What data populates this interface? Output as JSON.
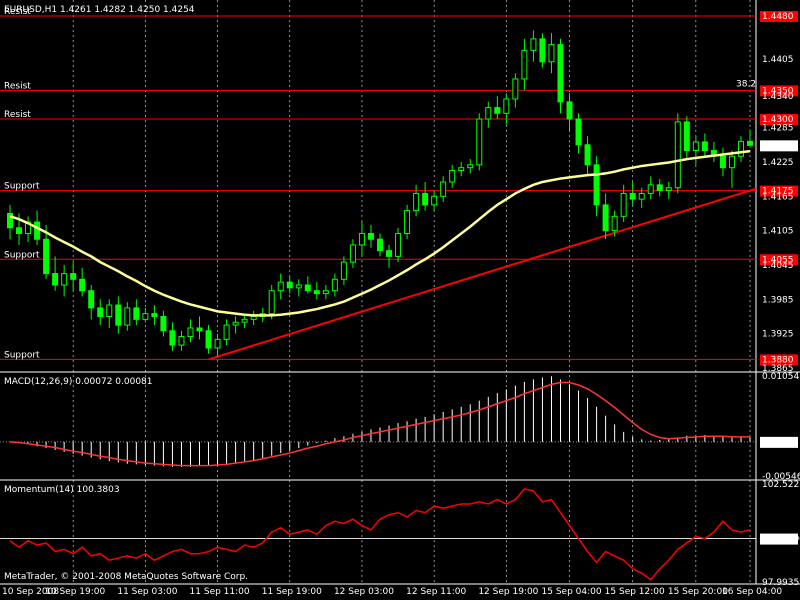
{
  "header": {
    "title": "EURUSD,H1  1.4261 1.4282 1.4250 1.4254"
  },
  "copyright": "MetaTrader, © 2001-2008 MetaQuotes Software Corp.",
  "colors": {
    "background": "#000000",
    "candle_up": "#00ff00",
    "candle_down": "#00ff00",
    "ma": "#ffff99",
    "trendline": "#ff0000",
    "resist_support_line": "#ff0000",
    "macd_signal": "#ff3333",
    "macd_hist": "#ffffff",
    "momentum": "#ff0000",
    "grid": "#ffffff",
    "separator": "#ffffff"
  },
  "chart_data": [
    {
      "type": "candlestick",
      "title": "EURUSD,H1",
      "ohlc": "1.4261 1.4282 1.4250 1.4254",
      "ylim": [
        1.3865,
        1.448
      ],
      "y_ticks": [
        "1.4405",
        "1.4340",
        "1.4285",
        "1.4225",
        "1.4165",
        "1.4105",
        "1.4045",
        "1.3985",
        "1.3925",
        "1.3865"
      ],
      "price_label_current": "1.4254",
      "levels": [
        {
          "label": "Resist",
          "value": 1.448,
          "tag": "1.4480"
        },
        {
          "label": "Resist",
          "value": 1.435,
          "tag": "1.4350",
          "note": "38.2"
        },
        {
          "label": "Resist",
          "value": 1.43,
          "tag": "1.4300"
        },
        {
          "label": "Support",
          "value": 1.4175,
          "tag": "1.4175"
        },
        {
          "label": "Support",
          "value": 1.4055,
          "tag": "1.4055"
        },
        {
          "label": "Support",
          "value": 1.388,
          "tag": "1.3880"
        }
      ],
      "x_labels": [
        "10 Sep 2008",
        "10 Sep 19:00",
        "11 Sep 03:00",
        "11 Sep 11:00",
        "11 Sep 19:00",
        "12 Sep 03:00",
        "12 Sep 11:00",
        "12 Sep 19:00",
        "15 Sep 04:00",
        "15 Sep 12:00",
        "15 Sep 20:00",
        "16 Sep 04:00"
      ],
      "candles": [
        {
          "o": 1.4135,
          "h": 1.415,
          "l": 1.409,
          "c": 1.411
        },
        {
          "o": 1.411,
          "h": 1.4135,
          "l": 1.408,
          "c": 1.41
        },
        {
          "o": 1.41,
          "h": 1.413,
          "l": 1.4085,
          "c": 1.412
        },
        {
          "o": 1.412,
          "h": 1.414,
          "l": 1.408,
          "c": 1.409
        },
        {
          "o": 1.409,
          "h": 1.4115,
          "l": 1.402,
          "c": 1.403
        },
        {
          "o": 1.403,
          "h": 1.406,
          "l": 1.4,
          "c": 1.401
        },
        {
          "o": 1.401,
          "h": 1.4045,
          "l": 1.399,
          "c": 1.403
        },
        {
          "o": 1.403,
          "h": 1.405,
          "l": 1.4,
          "c": 1.402
        },
        {
          "o": 1.402,
          "h": 1.404,
          "l": 1.399,
          "c": 1.4
        },
        {
          "o": 1.4,
          "h": 1.401,
          "l": 1.395,
          "c": 1.397
        },
        {
          "o": 1.397,
          "h": 1.3985,
          "l": 1.394,
          "c": 1.3955
        },
        {
          "o": 1.3955,
          "h": 1.3985,
          "l": 1.3935,
          "c": 1.3975
        },
        {
          "o": 1.3975,
          "h": 1.399,
          "l": 1.3925,
          "c": 1.394
        },
        {
          "o": 1.394,
          "h": 1.398,
          "l": 1.393,
          "c": 1.397
        },
        {
          "o": 1.397,
          "h": 1.3985,
          "l": 1.394,
          "c": 1.395
        },
        {
          "o": 1.395,
          "h": 1.397,
          "l": 1.3945,
          "c": 1.396
        },
        {
          "o": 1.396,
          "h": 1.3975,
          "l": 1.394,
          "c": 1.3955
        },
        {
          "o": 1.3955,
          "h": 1.3965,
          "l": 1.392,
          "c": 1.393
        },
        {
          "o": 1.393,
          "h": 1.3945,
          "l": 1.3895,
          "c": 1.3905
        },
        {
          "o": 1.3905,
          "h": 1.393,
          "l": 1.3895,
          "c": 1.392
        },
        {
          "o": 1.392,
          "h": 1.395,
          "l": 1.391,
          "c": 1.3935
        },
        {
          "o": 1.3935,
          "h": 1.3955,
          "l": 1.3915,
          "c": 1.393
        },
        {
          "o": 1.393,
          "h": 1.394,
          "l": 1.389,
          "c": 1.39
        },
        {
          "o": 1.39,
          "h": 1.3925,
          "l": 1.3885,
          "c": 1.3915
        },
        {
          "o": 1.3915,
          "h": 1.395,
          "l": 1.3905,
          "c": 1.394
        },
        {
          "o": 1.394,
          "h": 1.3955,
          "l": 1.3925,
          "c": 1.3945
        },
        {
          "o": 1.3945,
          "h": 1.396,
          "l": 1.3935,
          "c": 1.395
        },
        {
          "o": 1.395,
          "h": 1.3965,
          "l": 1.394,
          "c": 1.3955
        },
        {
          "o": 1.3955,
          "h": 1.397,
          "l": 1.3945,
          "c": 1.396
        },
        {
          "o": 1.396,
          "h": 1.401,
          "l": 1.395,
          "c": 1.4
        },
        {
          "o": 1.4,
          "h": 1.403,
          "l": 1.3985,
          "c": 1.4015
        },
        {
          "o": 1.4015,
          "h": 1.4025,
          "l": 1.3995,
          "c": 1.4005
        },
        {
          "o": 1.4005,
          "h": 1.402,
          "l": 1.399,
          "c": 1.401
        },
        {
          "o": 1.401,
          "h": 1.4025,
          "l": 1.3995,
          "c": 1.4
        },
        {
          "o": 1.4,
          "h": 1.4015,
          "l": 1.3985,
          "c": 1.3995
        },
        {
          "o": 1.3995,
          "h": 1.401,
          "l": 1.3985,
          "c": 1.4
        },
        {
          "o": 1.4,
          "h": 1.403,
          "l": 1.399,
          "c": 1.402
        },
        {
          "o": 1.402,
          "h": 1.406,
          "l": 1.401,
          "c": 1.405
        },
        {
          "o": 1.405,
          "h": 1.409,
          "l": 1.404,
          "c": 1.408
        },
        {
          "o": 1.408,
          "h": 1.412,
          "l": 1.406,
          "c": 1.41
        },
        {
          "o": 1.41,
          "h": 1.4115,
          "l": 1.4075,
          "c": 1.409
        },
        {
          "o": 1.409,
          "h": 1.41,
          "l": 1.406,
          "c": 1.407
        },
        {
          "o": 1.407,
          "h": 1.408,
          "l": 1.404,
          "c": 1.406
        },
        {
          "o": 1.406,
          "h": 1.411,
          "l": 1.405,
          "c": 1.41
        },
        {
          "o": 1.41,
          "h": 1.415,
          "l": 1.409,
          "c": 1.414
        },
        {
          "o": 1.414,
          "h": 1.4185,
          "l": 1.413,
          "c": 1.417
        },
        {
          "o": 1.417,
          "h": 1.419,
          "l": 1.414,
          "c": 1.415
        },
        {
          "o": 1.415,
          "h": 1.4175,
          "l": 1.414,
          "c": 1.4165
        },
        {
          "o": 1.4165,
          "h": 1.42,
          "l": 1.4155,
          "c": 1.419
        },
        {
          "o": 1.419,
          "h": 1.422,
          "l": 1.418,
          "c": 1.421
        },
        {
          "o": 1.421,
          "h": 1.4225,
          "l": 1.42,
          "c": 1.4215
        },
        {
          "o": 1.4215,
          "h": 1.423,
          "l": 1.4205,
          "c": 1.422
        },
        {
          "o": 1.422,
          "h": 1.431,
          "l": 1.421,
          "c": 1.43
        },
        {
          "o": 1.43,
          "h": 1.433,
          "l": 1.4285,
          "c": 1.432
        },
        {
          "o": 1.432,
          "h": 1.434,
          "l": 1.43,
          "c": 1.431
        },
        {
          "o": 1.431,
          "h": 1.4345,
          "l": 1.429,
          "c": 1.4335
        },
        {
          "o": 1.4335,
          "h": 1.438,
          "l": 1.432,
          "c": 1.437
        },
        {
          "o": 1.437,
          "h": 1.444,
          "l": 1.435,
          "c": 1.442
        },
        {
          "o": 1.442,
          "h": 1.4455,
          "l": 1.44,
          "c": 1.444
        },
        {
          "o": 1.444,
          "h": 1.445,
          "l": 1.439,
          "c": 1.44
        },
        {
          "o": 1.44,
          "h": 1.445,
          "l": 1.438,
          "c": 1.443
        },
        {
          "o": 1.443,
          "h": 1.444,
          "l": 1.431,
          "c": 1.433
        },
        {
          "o": 1.433,
          "h": 1.4345,
          "l": 1.428,
          "c": 1.43
        },
        {
          "o": 1.43,
          "h": 1.431,
          "l": 1.424,
          "c": 1.4255
        },
        {
          "o": 1.4255,
          "h": 1.427,
          "l": 1.42,
          "c": 1.422
        },
        {
          "o": 1.422,
          "h": 1.4235,
          "l": 1.413,
          "c": 1.415
        },
        {
          "o": 1.415,
          "h": 1.417,
          "l": 1.409,
          "c": 1.4105
        },
        {
          "o": 1.4105,
          "h": 1.414,
          "l": 1.4095,
          "c": 1.413
        },
        {
          "o": 1.413,
          "h": 1.4185,
          "l": 1.412,
          "c": 1.417
        },
        {
          "o": 1.417,
          "h": 1.419,
          "l": 1.415,
          "c": 1.416
        },
        {
          "o": 1.416,
          "h": 1.418,
          "l": 1.4145,
          "c": 1.417
        },
        {
          "o": 1.417,
          "h": 1.42,
          "l": 1.416,
          "c": 1.4185
        },
        {
          "o": 1.4185,
          "h": 1.4195,
          "l": 1.4165,
          "c": 1.4175
        },
        {
          "o": 1.4175,
          "h": 1.419,
          "l": 1.416,
          "c": 1.418
        },
        {
          "o": 1.418,
          "h": 1.431,
          "l": 1.417,
          "c": 1.4295
        },
        {
          "o": 1.4295,
          "h": 1.4305,
          "l": 1.423,
          "c": 1.4245
        },
        {
          "o": 1.4245,
          "h": 1.427,
          "l": 1.422,
          "c": 1.426
        },
        {
          "o": 1.426,
          "h": 1.4275,
          "l": 1.4235,
          "c": 1.4245
        },
        {
          "o": 1.4245,
          "h": 1.426,
          "l": 1.4225,
          "c": 1.4235
        },
        {
          "o": 1.4235,
          "h": 1.425,
          "l": 1.42,
          "c": 1.4215
        },
        {
          "o": 1.4215,
          "h": 1.4245,
          "l": 1.418,
          "c": 1.4235
        },
        {
          "o": 1.4235,
          "h": 1.427,
          "l": 1.4225,
          "c": 1.4261
        },
        {
          "o": 1.4261,
          "h": 1.4282,
          "l": 1.425,
          "c": 1.4254
        }
      ],
      "ma_values": [
        1.413,
        1.4125,
        1.4118,
        1.411,
        1.4102,
        1.4093,
        1.4085,
        1.4077,
        1.4068,
        1.406,
        1.405,
        1.4042,
        1.4034,
        1.4025,
        1.4017,
        1.4008,
        1.4,
        1.3993,
        1.3987,
        1.3981,
        1.3976,
        1.3972,
        1.3968,
        1.3964,
        1.3962,
        1.396,
        1.3958,
        1.3957,
        1.3957,
        1.3957,
        1.3958,
        1.396,
        1.3962,
        1.3965,
        1.3968,
        1.3972,
        1.3976,
        1.3981,
        1.3988,
        1.3995,
        1.4002,
        1.401,
        1.4018,
        1.4027,
        1.4036,
        1.4046,
        1.4055,
        1.4065,
        1.4076,
        1.4088,
        1.41,
        1.4112,
        1.4125,
        1.4138,
        1.415,
        1.416,
        1.417,
        1.4178,
        1.4185,
        1.419,
        1.4193,
        1.4196,
        1.4198,
        1.42,
        1.4202,
        1.4203,
        1.4205,
        1.4208,
        1.4212,
        1.4215,
        1.4218,
        1.422,
        1.4222,
        1.4224,
        1.4227,
        1.423,
        1.4232,
        1.4234,
        1.4236,
        1.4238,
        1.424,
        1.4242,
        1.4244
      ],
      "trendline": [
        [
          22,
          1.388
        ],
        [
          82,
          1.4175
        ]
      ]
    },
    {
      "type": "histogram+line",
      "title": "MACD(12,26,9) 0.00072 0.00081",
      "ylim": [
        -0.00546,
        0.01054
      ],
      "y_ticks": [
        "0.01054",
        "0.0000",
        "-0.00546"
      ],
      "current_tag": "0.0000",
      "histogram": [
        0.0,
        -0.0002,
        -0.0004,
        -0.0007,
        -0.001,
        -0.0013,
        -0.0016,
        -0.0019,
        -0.0022,
        -0.0025,
        -0.0028,
        -0.0031,
        -0.0033,
        -0.0035,
        -0.0036,
        -0.0037,
        -0.0038,
        -0.0039,
        -0.004,
        -0.004,
        -0.004,
        -0.0039,
        -0.0038,
        -0.0037,
        -0.0035,
        -0.0033,
        -0.0031,
        -0.0029,
        -0.0026,
        -0.0022,
        -0.0018,
        -0.0014,
        -0.001,
        -0.0006,
        -0.0002,
        0.0002,
        0.0006,
        0.0009,
        0.0013,
        0.0016,
        0.002,
        0.0023,
        0.0026,
        0.003,
        0.0033,
        0.0037,
        0.004,
        0.0044,
        0.0048,
        0.0052,
        0.0056,
        0.006,
        0.0066,
        0.0072,
        0.0078,
        0.0084,
        0.009,
        0.0096,
        0.01,
        0.0103,
        0.0105,
        0.01,
        0.0092,
        0.0082,
        0.007,
        0.0056,
        0.0042,
        0.0028,
        0.0016,
        0.0008,
        0.0004,
        0.0002,
        0.0003,
        0.0005,
        0.0007,
        0.001,
        0.001,
        0.0011,
        0.001,
        0.0009,
        0.0008,
        0.0008,
        0.0007
      ],
      "signal": [
        0.0,
        -0.0001,
        -0.0003,
        -0.0005,
        -0.0007,
        -0.0009,
        -0.0012,
        -0.0015,
        -0.0017,
        -0.002,
        -0.0023,
        -0.0025,
        -0.0028,
        -0.003,
        -0.0032,
        -0.0034,
        -0.0035,
        -0.0036,
        -0.0037,
        -0.0038,
        -0.0038,
        -0.0038,
        -0.0038,
        -0.0037,
        -0.0036,
        -0.0034,
        -0.0032,
        -0.003,
        -0.0027,
        -0.0024,
        -0.0021,
        -0.0018,
        -0.0014,
        -0.001,
        -0.0007,
        -0.0003,
        0.0,
        0.0003,
        0.0007,
        0.001,
        0.0013,
        0.0016,
        0.0019,
        0.0022,
        0.0025,
        0.0028,
        0.0031,
        0.0034,
        0.0037,
        0.004,
        0.0043,
        0.0047,
        0.0051,
        0.0056,
        0.0061,
        0.0066,
        0.0071,
        0.0077,
        0.0082,
        0.0087,
        0.0092,
        0.0095,
        0.0095,
        0.0091,
        0.0085,
        0.0076,
        0.0066,
        0.0055,
        0.0043,
        0.0031,
        0.002,
        0.0012,
        0.0007,
        0.0005,
        0.0006,
        0.0007,
        0.0008,
        0.0009,
        0.0009,
        0.0009,
        0.0008,
        0.0008,
        0.0008
      ]
    },
    {
      "type": "line",
      "title": "Momentum(14) 100.3803",
      "ylim": [
        97.9935,
        102.5222
      ],
      "y_ticks": [
        "102.5222",
        "100.0000",
        "97.9935"
      ],
      "current_tag": "100.0000",
      "values": [
        99.9,
        99.6,
        99.9,
        99.7,
        99.8,
        99.4,
        99.5,
        99.3,
        99.6,
        99.2,
        99.3,
        99.0,
        99.1,
        99.2,
        99.1,
        99.3,
        99.0,
        99.2,
        99.4,
        99.5,
        99.3,
        99.3,
        99.4,
        99.6,
        99.5,
        99.4,
        99.7,
        99.6,
        99.8,
        100.3,
        100.5,
        100.2,
        100.3,
        100.4,
        100.2,
        100.6,
        100.8,
        100.7,
        100.9,
        100.6,
        100.4,
        100.9,
        101.1,
        101.2,
        101.0,
        101.3,
        101.2,
        101.5,
        101.4,
        101.5,
        101.6,
        101.6,
        101.7,
        101.6,
        101.8,
        101.6,
        101.8,
        102.3,
        102.2,
        101.7,
        101.8,
        101.2,
        100.6,
        100.0,
        99.4,
        98.9,
        99.4,
        99.2,
        99.0,
        98.6,
        98.4,
        98.1,
        98.6,
        99.0,
        99.5,
        99.8,
        100.1,
        100.0,
        100.3,
        100.8,
        100.4,
        100.3,
        100.4
      ]
    }
  ]
}
